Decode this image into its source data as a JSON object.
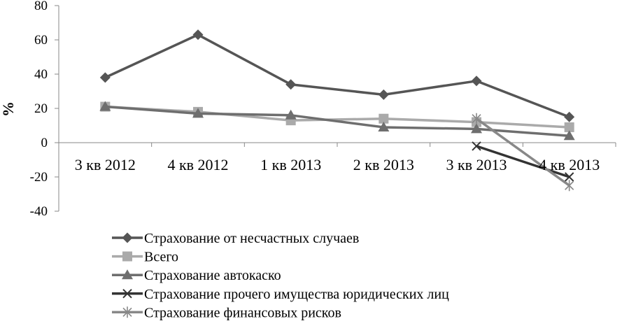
{
  "chart_data": {
    "type": "line",
    "title": "",
    "xlabel": "",
    "ylabel": "%",
    "ylim": [
      -40,
      80
    ],
    "yticks": [
      80,
      60,
      40,
      20,
      0,
      -20,
      -40
    ],
    "grid": false,
    "legend_position": "bottom",
    "categories": [
      "3 кв 2012",
      "4 кв 2012",
      "1 кв 2013",
      "2 кв 2013",
      "3 кв 2013",
      "4 кв 2013"
    ],
    "series": [
      {
        "name": "Страхование от несчастных случаев",
        "marker": "diamond",
        "color": "#555555",
        "values": [
          38,
          63,
          34,
          28,
          36,
          15
        ]
      },
      {
        "name": "Всего",
        "marker": "square",
        "color": "#aaaaaa",
        "values": [
          21,
          18,
          13,
          14,
          12,
          9
        ]
      },
      {
        "name": "Страхование автокаско",
        "marker": "triangle",
        "color": "#6e6e6e",
        "values": [
          21,
          17,
          16,
          9,
          8,
          4
        ]
      },
      {
        "name": "Страхование прочего имущества юридических лиц",
        "marker": "x",
        "color": "#333333",
        "values": [
          null,
          null,
          null,
          null,
          -2,
          -20
        ]
      },
      {
        "name": "Страхование финансовых рисков",
        "marker": "star",
        "color": "#888888",
        "values": [
          null,
          null,
          null,
          null,
          14,
          -25
        ]
      }
    ]
  }
}
